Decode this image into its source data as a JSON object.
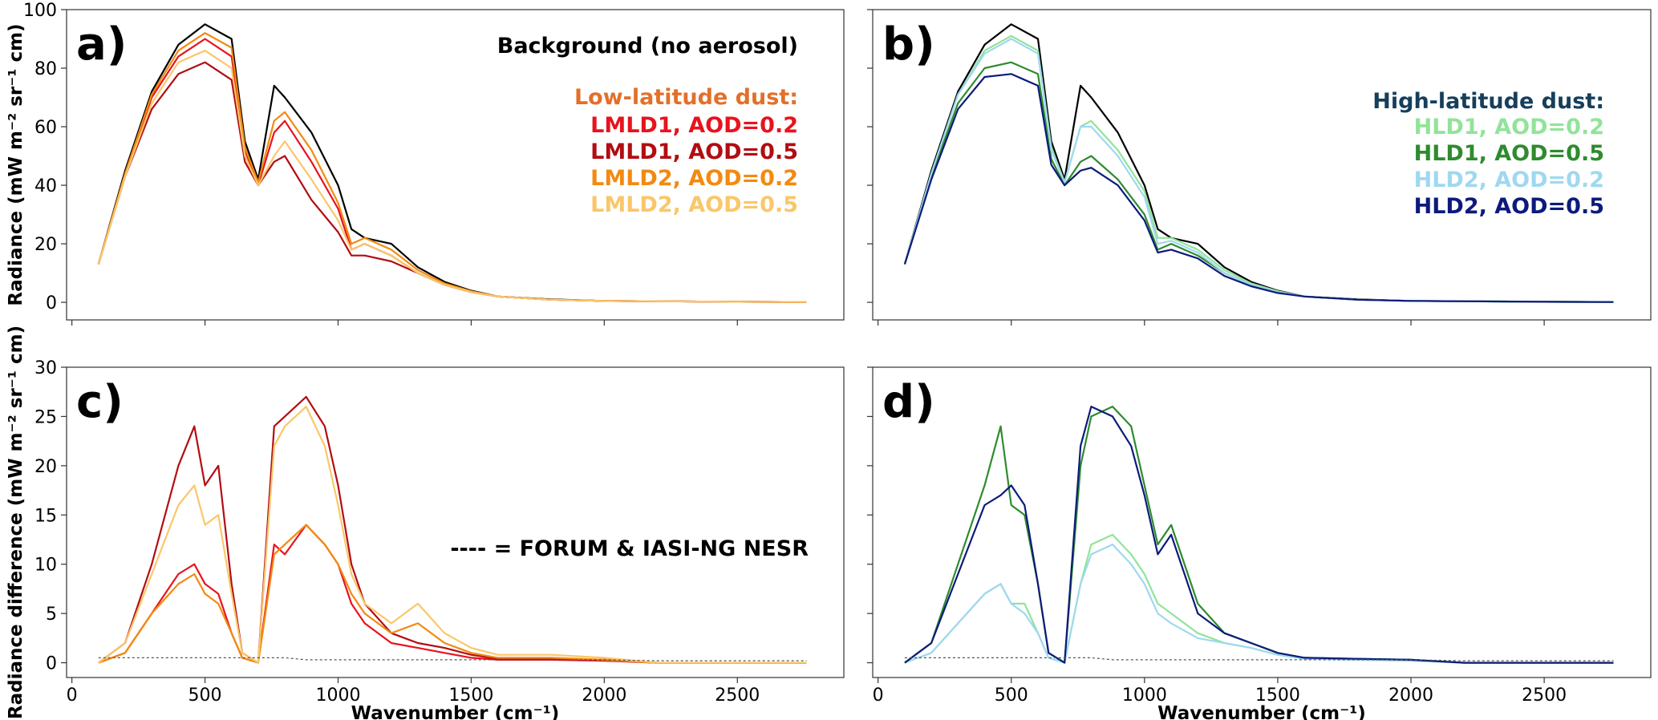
{
  "figure": {
    "xlabel": "Wavenumber (cm⁻¹)",
    "nesr_note": "---- = FORUM & IASI-NG NESR"
  },
  "chart_data": [
    {
      "panel": "a)",
      "type": "line",
      "ylabel": "Radiance (mW m⁻² sr⁻¹ cm)",
      "xlim": [
        -20,
        2900
      ],
      "ylim": [
        -6,
        100
      ],
      "xticks": [
        0,
        500,
        1000,
        1500,
        2000,
        2500
      ],
      "yticks": [
        0,
        20,
        40,
        60,
        80,
        100
      ],
      "grid": false,
      "legend_position": "top-right",
      "legend_title": "Low-latitude dust:",
      "background_label": "Background (no aerosol)",
      "x": [
        100,
        200,
        300,
        400,
        500,
        600,
        650,
        700,
        760,
        800,
        900,
        1000,
        1050,
        1100,
        1200,
        1300,
        1400,
        1500,
        1600,
        1800,
        2000,
        2500,
        2760
      ],
      "series": [
        {
          "name": "Background (no aerosol)",
          "color": "#000000",
          "values": [
            13,
            45,
            72,
            88,
            95,
            90,
            55,
            42,
            74,
            70,
            58,
            40,
            25,
            22,
            20,
            12,
            7,
            4,
            2,
            1.0,
            0.5,
            0.2,
            0.1
          ]
        },
        {
          "name": "LMLD1, AOD=0.2",
          "color": "#e8131e",
          "values": [
            13,
            44,
            70,
            84,
            90,
            84,
            52,
            40,
            58,
            62,
            48,
            32,
            18,
            20,
            16,
            10,
            6,
            3.5,
            2,
            0.9,
            0.5,
            0.2,
            0.1
          ]
        },
        {
          "name": "LMLD1, AOD=0.5",
          "color": "#b10d12",
          "values": [
            13,
            43,
            66,
            78,
            82,
            76,
            48,
            40,
            48,
            50,
            35,
            24,
            16,
            16,
            14,
            10,
            6,
            3.5,
            2,
            0.9,
            0.5,
            0.2,
            0.1
          ]
        },
        {
          "name": "LMLD2, AOD=0.2",
          "color": "#f28a10",
          "values": [
            13,
            44,
            71,
            86,
            92,
            87,
            53,
            41,
            62,
            65,
            52,
            34,
            20,
            22,
            18,
            11,
            6.5,
            3.8,
            2,
            0.9,
            0.5,
            0.2,
            0.1
          ]
        },
        {
          "name": "LMLD2, AOD=0.5",
          "color": "#f9c76a",
          "values": [
            13,
            43,
            68,
            82,
            86,
            80,
            50,
            40,
            50,
            55,
            42,
            28,
            18,
            20,
            16,
            10,
            6,
            3.5,
            2,
            0.9,
            0.5,
            0.2,
            0.1
          ]
        }
      ]
    },
    {
      "panel": "b)",
      "type": "line",
      "xlim": [
        -20,
        2900
      ],
      "ylim": [
        -6,
        100
      ],
      "xticks": [
        0,
        500,
        1000,
        1500,
        2000,
        2500
      ],
      "grid": false,
      "legend_position": "top-right",
      "legend_title": "High-latitude dust:",
      "x": [
        100,
        200,
        300,
        400,
        500,
        600,
        650,
        700,
        760,
        800,
        900,
        1000,
        1050,
        1100,
        1200,
        1300,
        1400,
        1500,
        1600,
        1800,
        2000,
        2500,
        2760
      ],
      "series": [
        {
          "name": "Background",
          "color": "#000000",
          "values": [
            13,
            45,
            72,
            88,
            95,
            90,
            55,
            42,
            74,
            70,
            58,
            40,
            25,
            22,
            20,
            12,
            7,
            4,
            2,
            1.0,
            0.5,
            0.2,
            0.1
          ]
        },
        {
          "name": "HLD1, AOD=0.2",
          "color": "#92e39a",
          "values": [
            13,
            44,
            71,
            86,
            91,
            86,
            53,
            41,
            60,
            62,
            52,
            38,
            22,
            22,
            18,
            11,
            6.5,
            3.8,
            2,
            0.9,
            0.5,
            0.2,
            0.1
          ]
        },
        {
          "name": "HLD1, AOD=0.5",
          "color": "#2e8b2e",
          "values": [
            13,
            43,
            68,
            80,
            82,
            78,
            49,
            40,
            48,
            50,
            42,
            30,
            18,
            20,
            16,
            10,
            6,
            3.5,
            2,
            0.9,
            0.5,
            0.2,
            0.1
          ]
        },
        {
          "name": "HLD2, AOD=0.2",
          "color": "#9fd8f0",
          "values": [
            13,
            44,
            71,
            85,
            90,
            85,
            52,
            41,
            60,
            60,
            50,
            36,
            20,
            21,
            17,
            10,
            6,
            3.5,
            2,
            0.9,
            0.5,
            0.2,
            0.1
          ]
        },
        {
          "name": "HLD2, AOD=0.5",
          "color": "#0c1b7a",
          "values": [
            13,
            42,
            66,
            77,
            78,
            74,
            47,
            40,
            45,
            46,
            40,
            28,
            17,
            18,
            15,
            9,
            5.5,
            3.2,
            2,
            0.9,
            0.5,
            0.2,
            0.1
          ]
        }
      ]
    },
    {
      "panel": "c)",
      "type": "line",
      "ylabel": "Radiance difference (mW m⁻² sr⁻¹ cm)",
      "xlabel": "Wavenumber (cm⁻¹)",
      "xlim": [
        -20,
        2900
      ],
      "ylim": [
        -1.5,
        30
      ],
      "xticks": [
        0,
        500,
        1000,
        1500,
        2000,
        2500
      ],
      "yticks": [
        0,
        5,
        10,
        15,
        20,
        25,
        30
      ],
      "grid": false,
      "annotation": "---- = FORUM & IASI-NG NESR",
      "x": [
        100,
        200,
        300,
        400,
        460,
        500,
        550,
        600,
        640,
        700,
        760,
        800,
        880,
        950,
        1000,
        1050,
        1100,
        1200,
        1300,
        1400,
        1500,
        1600,
        1800,
        2000,
        2200,
        2760
      ],
      "series": [
        {
          "name": "LMLD1, AOD=0.2",
          "color": "#e8131e",
          "values": [
            0,
            1,
            5,
            9,
            10,
            8,
            7,
            3,
            0.5,
            0,
            12,
            11,
            14,
            12,
            10,
            6,
            4,
            2,
            1.5,
            1,
            0.5,
            0.3,
            0.3,
            0.2,
            0,
            0
          ]
        },
        {
          "name": "LMLD1, AOD=0.5",
          "color": "#b10d12",
          "values": [
            0,
            2,
            10,
            20,
            24,
            18,
            20,
            8,
            1,
            0,
            24,
            25,
            27,
            24,
            18,
            10,
            6,
            3,
            2,
            1.5,
            0.8,
            0.4,
            0.4,
            0.3,
            0,
            0
          ]
        },
        {
          "name": "LMLD2, AOD=0.2",
          "color": "#f28a10",
          "values": [
            0,
            1,
            5,
            8,
            9,
            7,
            6,
            3,
            0.5,
            0,
            11,
            12,
            14,
            12,
            10,
            7,
            5,
            3,
            4,
            2,
            1,
            0.5,
            0.5,
            0.3,
            0,
            0
          ]
        },
        {
          "name": "LMLD2, AOD=0.5",
          "color": "#f9c76a",
          "values": [
            0,
            2,
            9,
            16,
            18,
            14,
            15,
            7,
            1,
            0,
            22,
            24,
            26,
            22,
            16,
            9,
            6,
            4,
            6,
            3,
            1.5,
            0.8,
            0.8,
            0.5,
            0,
            0
          ]
        },
        {
          "name": "NESR",
          "color": "#555555",
          "dashed": true,
          "values": [
            0.5,
            0.5,
            0.5,
            0.5,
            0.5,
            0.5,
            0.5,
            0.5,
            0.5,
            0.5,
            0.5,
            0.5,
            0.3,
            0.3,
            0.3,
            0.3,
            0.3,
            0.3,
            0.3,
            0.3,
            0.3,
            0.3,
            0.3,
            0.3,
            0.2,
            0.2
          ]
        }
      ]
    },
    {
      "panel": "d)",
      "type": "line",
      "xlabel": "Wavenumber (cm⁻¹)",
      "xlim": [
        -20,
        2900
      ],
      "ylim": [
        -1.5,
        30
      ],
      "xticks": [
        0,
        500,
        1000,
        1500,
        2000,
        2500
      ],
      "grid": false,
      "x": [
        100,
        200,
        300,
        400,
        460,
        500,
        550,
        600,
        640,
        700,
        760,
        800,
        880,
        950,
        1000,
        1050,
        1100,
        1200,
        1300,
        1400,
        1500,
        1600,
        1800,
        2000,
        2200,
        2760
      ],
      "series": [
        {
          "name": "HLD1, AOD=0.2",
          "color": "#92e39a",
          "values": [
            0,
            1,
            4,
            7,
            8,
            6,
            6,
            3,
            0.5,
            0,
            8,
            12,
            13,
            11,
            9,
            6,
            5,
            3,
            2,
            1.5,
            0.8,
            0.4,
            0.3,
            0.2,
            0,
            0
          ]
        },
        {
          "name": "HLD1, AOD=0.5",
          "color": "#2e8b2e",
          "values": [
            0,
            2,
            10,
            18,
            24,
            16,
            15,
            8,
            1,
            0,
            20,
            25,
            26,
            24,
            18,
            12,
            14,
            6,
            3,
            2,
            1,
            0.5,
            0.4,
            0.3,
            0,
            0
          ]
        },
        {
          "name": "HLD2, AOD=0.2",
          "color": "#9fd8f0",
          "values": [
            0,
            1,
            4,
            7,
            8,
            6,
            5,
            3,
            0.5,
            0,
            8,
            11,
            12,
            10,
            8,
            5,
            4,
            2.5,
            2,
            1.5,
            0.8,
            0.4,
            0.3,
            0.2,
            0,
            0
          ]
        },
        {
          "name": "HLD2, AOD=0.5",
          "color": "#0c1b7a",
          "values": [
            0,
            2,
            9,
            16,
            17,
            18,
            16,
            8,
            1,
            0,
            22,
            26,
            25,
            22,
            17,
            11,
            13,
            5,
            3,
            2,
            1,
            0.5,
            0.4,
            0.3,
            0,
            0
          ]
        },
        {
          "name": "NESR",
          "color": "#555555",
          "dashed": true,
          "values": [
            0.5,
            0.5,
            0.5,
            0.5,
            0.5,
            0.5,
            0.5,
            0.5,
            0.5,
            0.5,
            0.5,
            0.5,
            0.3,
            0.3,
            0.3,
            0.3,
            0.3,
            0.3,
            0.3,
            0.3,
            0.3,
            0.3,
            0.3,
            0.3,
            0.2,
            0.2
          ]
        }
      ]
    }
  ]
}
